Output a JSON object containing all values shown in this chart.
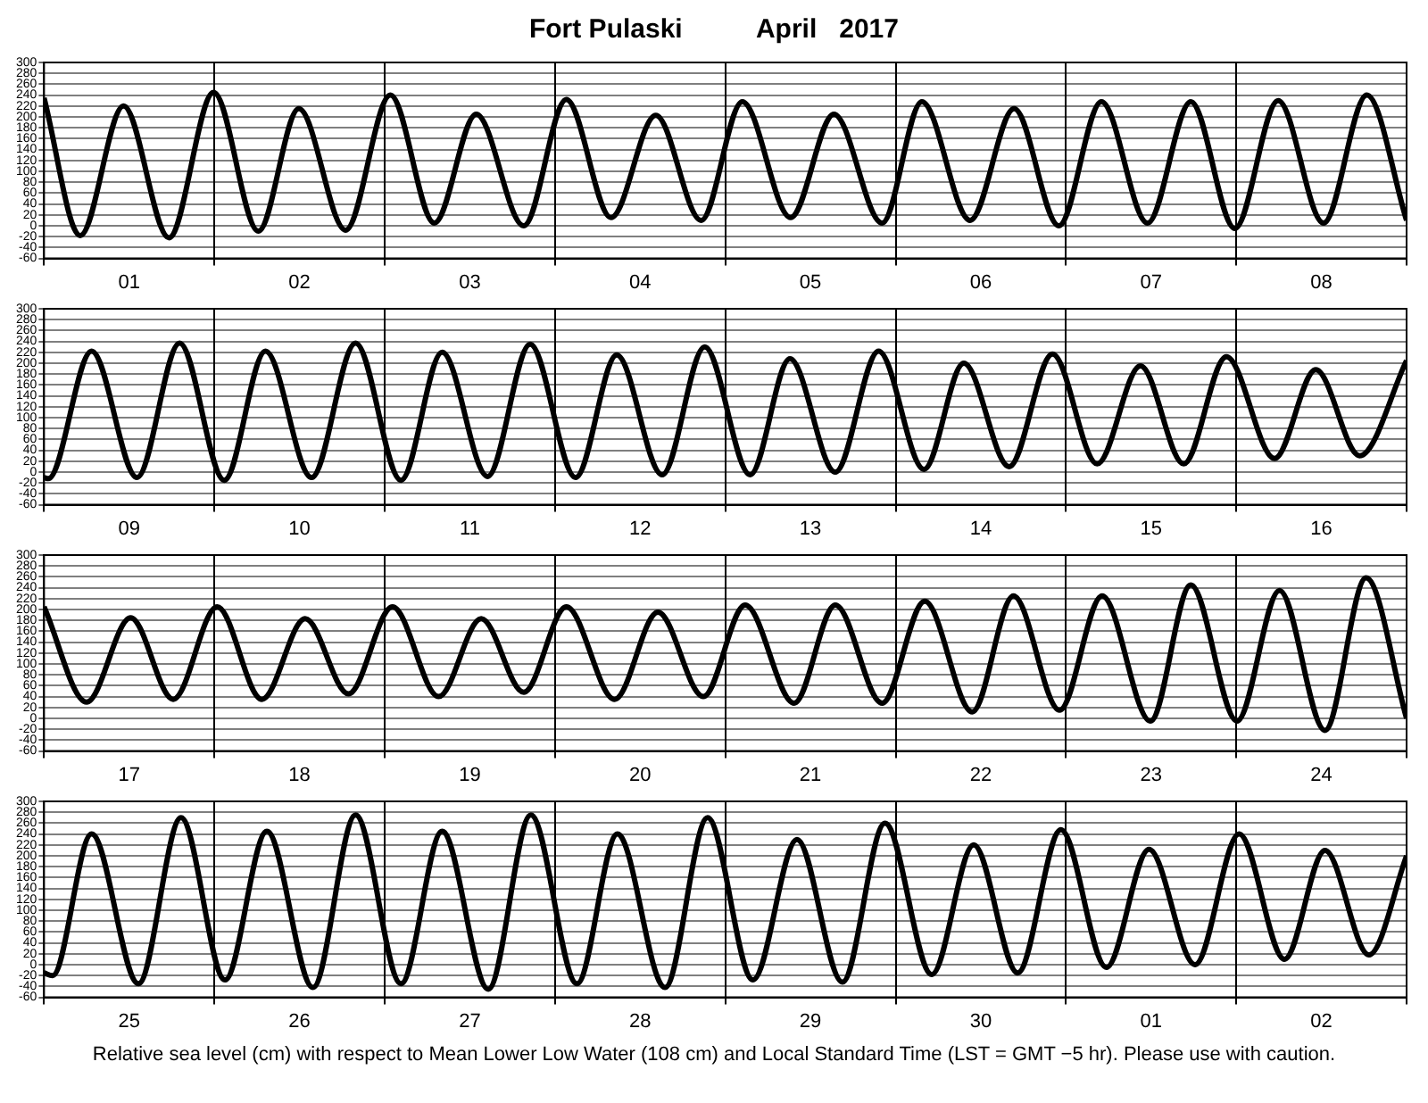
{
  "chart_data": [
    {
      "type": "line",
      "title": "Fort Pulaski          April   2017",
      "marker": "none",
      "grid": true,
      "xlim": [
        "2017-04-01T00:00",
        "2017-04-09T00:00"
      ],
      "xticks": [
        {
          "value": "2017-04-01T00:00",
          "label": null
        },
        {
          "value": "2017-04-01T12:00",
          "label": "01"
        },
        {
          "value": "2017-04-02T00:00",
          "label": null
        },
        {
          "value": "2017-04-02T12:00",
          "label": "02"
        },
        {
          "value": "2017-04-03T00:00",
          "label": null
        },
        {
          "value": "2017-04-03T12:00",
          "label": "03"
        },
        {
          "value": "2017-04-04T00:00",
          "label": null
        },
        {
          "value": "2017-04-04T12:00",
          "label": "04"
        },
        {
          "value": "2017-04-05T00:00",
          "label": null
        },
        {
          "value": "2017-04-05T12:00",
          "label": "05"
        },
        {
          "value": "2017-04-06T00:00",
          "label": null
        },
        {
          "value": "2017-04-06T12:00",
          "label": "06"
        },
        {
          "value": "2017-04-07T00:00",
          "label": null
        },
        {
          "value": "2017-04-07T12:00",
          "label": "07"
        },
        {
          "value": "2017-04-08T00:00",
          "label": null
        },
        {
          "value": "2017-04-08T12:00",
          "label": "08"
        },
        {
          "value": "2017-04-09T00:00",
          "label": null
        }
      ],
      "ylim": [
        -60,
        300
      ],
      "yticks": [
        -60,
        -40,
        -20,
        0,
        20,
        40,
        60,
        80,
        100,
        120,
        140,
        160,
        180,
        200,
        220,
        240,
        260,
        280,
        300
      ],
      "series": [
        {
          "color": "#000000",
          "x": [
            "2017-04-01T00:00",
            "2017-04-01T05:06",
            "2017-04-01T11:12",
            "2017-04-01T17:36",
            "2017-04-01T23:54",
            "2017-04-02T06:12",
            "2017-04-02T11:54",
            "2017-04-02T18:30",
            "2017-04-03T00:48",
            "2017-04-03T07:00",
            "2017-04-03T12:54",
            "2017-04-03T19:36",
            "2017-04-04T01:36",
            "2017-04-04T07:54",
            "2017-04-04T14:12",
            "2017-04-04T20:36",
            "2017-04-05T02:24",
            "2017-04-05T09:12",
            "2017-04-05T15:18",
            "2017-04-05T22:06",
            "2017-04-06T03:42",
            "2017-04-06T10:30",
            "2017-04-06T16:42",
            "2017-04-06T23:00",
            "2017-04-07T05:00",
            "2017-04-07T11:30",
            "2017-04-07T17:36",
            "2017-04-07T23:48",
            "2017-04-08T05:54",
            "2017-04-08T12:18",
            "2017-04-08T18:24",
            "2017-04-09T00:00"
          ],
          "values": [
            235,
            -18,
            220,
            -22,
            245,
            -10,
            215,
            -8,
            240,
            5,
            205,
            0,
            232,
            15,
            203,
            10,
            228,
            15,
            205,
            5,
            228,
            10,
            215,
            0,
            228,
            5,
            228,
            -5,
            230,
            5,
            240,
            10
          ]
        }
      ]
    },
    {
      "type": "line",
      "marker": "none",
      "grid": true,
      "xlim": [
        "2017-04-09T00:00",
        "2017-04-17T00:00"
      ],
      "xticks": [
        {
          "value": "2017-04-09T00:00",
          "label": null
        },
        {
          "value": "2017-04-09T12:00",
          "label": "09"
        },
        {
          "value": "2017-04-10T00:00",
          "label": null
        },
        {
          "value": "2017-04-10T12:00",
          "label": "10"
        },
        {
          "value": "2017-04-11T00:00",
          "label": null
        },
        {
          "value": "2017-04-11T12:00",
          "label": "11"
        },
        {
          "value": "2017-04-12T00:00",
          "label": null
        },
        {
          "value": "2017-04-12T12:00",
          "label": "12"
        },
        {
          "value": "2017-04-13T00:00",
          "label": null
        },
        {
          "value": "2017-04-13T12:00",
          "label": "13"
        },
        {
          "value": "2017-04-14T00:00",
          "label": null
        },
        {
          "value": "2017-04-14T12:00",
          "label": "14"
        },
        {
          "value": "2017-04-15T00:00",
          "label": null
        },
        {
          "value": "2017-04-15T12:00",
          "label": "15"
        },
        {
          "value": "2017-04-16T00:00",
          "label": null
        },
        {
          "value": "2017-04-16T12:00",
          "label": "16"
        },
        {
          "value": "2017-04-17T00:00",
          "label": null
        }
      ],
      "ylim": [
        -60,
        300
      ],
      "yticks": [
        -60,
        -40,
        -20,
        0,
        20,
        40,
        60,
        80,
        100,
        120,
        140,
        160,
        180,
        200,
        220,
        240,
        260,
        280,
        300
      ],
      "series": [
        {
          "color": "#000000",
          "x": [
            "2017-04-09T00:00",
            "2017-04-09T00:36",
            "2017-04-09T06:42",
            "2017-04-09T13:06",
            "2017-04-09T19:06",
            "2017-04-10T01:24",
            "2017-04-10T07:12",
            "2017-04-10T13:42",
            "2017-04-10T19:54",
            "2017-04-11T02:18",
            "2017-04-11T08:06",
            "2017-04-11T14:30",
            "2017-04-11T20:30",
            "2017-04-12T02:54",
            "2017-04-12T08:42",
            "2017-04-12T15:06",
            "2017-04-12T21:06",
            "2017-04-13T03:30",
            "2017-04-13T09:06",
            "2017-04-13T15:30",
            "2017-04-13T21:36",
            "2017-04-14T04:00",
            "2017-04-14T09:36",
            "2017-04-14T16:00",
            "2017-04-14T22:06",
            "2017-04-15T04:24",
            "2017-04-15T10:30",
            "2017-04-15T16:36",
            "2017-04-15T22:36",
            "2017-04-16T05:24",
            "2017-04-16T11:12",
            "2017-04-16T17:24",
            "2017-04-17T00:00"
          ],
          "values": [
            -10,
            -12,
            222,
            -10,
            237,
            -15,
            222,
            -10,
            237,
            -15,
            220,
            -8,
            235,
            -10,
            215,
            -5,
            230,
            -5,
            208,
            0,
            222,
            5,
            200,
            10,
            217,
            15,
            195,
            15,
            212,
            25,
            188,
            30,
            205
          ]
        }
      ]
    },
    {
      "type": "line",
      "marker": "none",
      "grid": true,
      "xlim": [
        "2017-04-17T00:00",
        "2017-04-25T00:00"
      ],
      "xticks": [
        {
          "value": "2017-04-17T00:00",
          "label": null
        },
        {
          "value": "2017-04-17T12:00",
          "label": "17"
        },
        {
          "value": "2017-04-18T00:00",
          "label": null
        },
        {
          "value": "2017-04-18T12:00",
          "label": "18"
        },
        {
          "value": "2017-04-19T00:00",
          "label": null
        },
        {
          "value": "2017-04-19T12:00",
          "label": "19"
        },
        {
          "value": "2017-04-20T00:00",
          "label": null
        },
        {
          "value": "2017-04-20T12:00",
          "label": "20"
        },
        {
          "value": "2017-04-21T00:00",
          "label": null
        },
        {
          "value": "2017-04-21T12:00",
          "label": "21"
        },
        {
          "value": "2017-04-22T00:00",
          "label": null
        },
        {
          "value": "2017-04-22T12:00",
          "label": "22"
        },
        {
          "value": "2017-04-23T00:00",
          "label": null
        },
        {
          "value": "2017-04-23T12:00",
          "label": "23"
        },
        {
          "value": "2017-04-24T00:00",
          "label": null
        },
        {
          "value": "2017-04-24T12:00",
          "label": "24"
        },
        {
          "value": "2017-04-25T00:00",
          "label": null
        }
      ],
      "ylim": [
        -60,
        300
      ],
      "yticks": [
        -60,
        -40,
        -20,
        0,
        20,
        40,
        60,
        80,
        100,
        120,
        140,
        160,
        180,
        200,
        220,
        240,
        260,
        280,
        300
      ],
      "series": [
        {
          "color": "#000000",
          "x": [
            "2017-04-17T00:00",
            "2017-04-17T06:00",
            "2017-04-17T12:12",
            "2017-04-17T18:12",
            "2017-04-18T00:24",
            "2017-04-18T06:42",
            "2017-04-18T12:48",
            "2017-04-18T18:54",
            "2017-04-19T01:06",
            "2017-04-19T07:36",
            "2017-04-19T13:36",
            "2017-04-19T19:36",
            "2017-04-20T01:36",
            "2017-04-20T08:24",
            "2017-04-20T14:30",
            "2017-04-20T20:54",
            "2017-04-21T02:48",
            "2017-04-21T09:42",
            "2017-04-21T15:30",
            "2017-04-21T22:06",
            "2017-04-22T04:06",
            "2017-04-22T10:48",
            "2017-04-22T16:36",
            "2017-04-22T23:06",
            "2017-04-23T05:06",
            "2017-04-23T11:54",
            "2017-04-23T17:36",
            "2017-04-24T00:06",
            "2017-04-24T06:06",
            "2017-04-24T12:30",
            "2017-04-24T18:18",
            "2017-04-25T00:00"
          ],
          "values": [
            205,
            30,
            185,
            35,
            205,
            35,
            183,
            45,
            205,
            40,
            183,
            48,
            205,
            35,
            195,
            40,
            208,
            28,
            208,
            28,
            215,
            12,
            225,
            15,
            225,
            -5,
            245,
            -5,
            235,
            -22,
            258,
            0
          ]
        }
      ]
    },
    {
      "type": "line",
      "marker": "none",
      "grid": true,
      "xlim": [
        "2017-04-25T00:00",
        "2017-05-03T00:00"
      ],
      "xticks": [
        {
          "value": "2017-04-25T00:00",
          "label": null
        },
        {
          "value": "2017-04-25T12:00",
          "label": "25"
        },
        {
          "value": "2017-04-26T00:00",
          "label": null
        },
        {
          "value": "2017-04-26T12:00",
          "label": "26"
        },
        {
          "value": "2017-04-27T00:00",
          "label": null
        },
        {
          "value": "2017-04-27T12:00",
          "label": "27"
        },
        {
          "value": "2017-04-28T00:00",
          "label": null
        },
        {
          "value": "2017-04-28T12:00",
          "label": "28"
        },
        {
          "value": "2017-04-29T00:00",
          "label": null
        },
        {
          "value": "2017-04-29T12:00",
          "label": "29"
        },
        {
          "value": "2017-04-30T00:00",
          "label": null
        },
        {
          "value": "2017-04-30T12:00",
          "label": "30"
        },
        {
          "value": "2017-05-01T00:00",
          "label": null
        },
        {
          "value": "2017-05-01T12:00",
          "label": "01"
        },
        {
          "value": "2017-05-02T00:00",
          "label": null
        },
        {
          "value": "2017-05-02T12:00",
          "label": "02"
        },
        {
          "value": "2017-05-03T00:00",
          "label": null
        }
      ],
      "ylim": [
        -60,
        300
      ],
      "yticks": [
        -60,
        -40,
        -20,
        0,
        20,
        40,
        60,
        80,
        100,
        120,
        140,
        160,
        180,
        200,
        220,
        240,
        260,
        280,
        300
      ],
      "annotations": [
        "Relative sea level (cm) with respect to Mean Lower Low Water (108 cm) and Local Standard Time (LST = GMT −5 hr). Please use with caution."
      ],
      "series": [
        {
          "color": "#000000",
          "x": [
            "2017-04-25T00:00",
            "2017-04-25T01:12",
            "2017-04-25T06:42",
            "2017-04-25T13:18",
            "2017-04-25T19:18",
            "2017-04-26T01:30",
            "2017-04-26T07:24",
            "2017-04-26T13:54",
            "2017-04-26T19:54",
            "2017-04-27T02:18",
            "2017-04-27T08:06",
            "2017-04-27T14:36",
            "2017-04-27T20:36",
            "2017-04-28T03:06",
            "2017-04-28T08:48",
            "2017-04-28T15:30",
            "2017-04-28T21:30",
            "2017-04-29T03:54",
            "2017-04-29T10:06",
            "2017-04-29T16:30",
            "2017-04-29T22:30",
            "2017-04-30T05:06",
            "2017-04-30T11:00",
            "2017-04-30T17:12",
            "2017-04-30T23:18",
            "2017-05-01T05:42",
            "2017-05-01T11:42",
            "2017-05-01T18:12",
            "2017-05-02T00:24",
            "2017-05-02T06:48",
            "2017-05-02T12:30",
            "2017-05-02T18:42",
            "2017-05-03T00:00"
          ],
          "values": [
            -15,
            -20,
            240,
            -35,
            270,
            -28,
            245,
            -42,
            275,
            -35,
            245,
            -45,
            275,
            -35,
            240,
            -42,
            270,
            -28,
            230,
            -32,
            260,
            -18,
            220,
            -15,
            248,
            -5,
            212,
            0,
            240,
            10,
            210,
            18,
            200
          ]
        }
      ]
    }
  ]
}
